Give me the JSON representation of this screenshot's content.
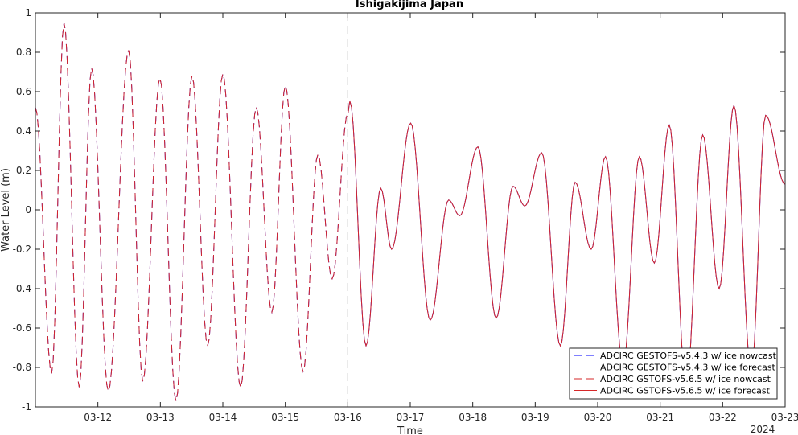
{
  "chart_data": {
    "type": "line",
    "title": "Ishigakijima Japan",
    "xlabel": "Time",
    "ylabel": "Water Level (m)",
    "year_label": "2024",
    "ylim": [
      -1,
      1
    ],
    "yticks": [
      -1,
      -0.8,
      -0.6,
      -0.4,
      -0.2,
      0,
      0.2,
      0.4,
      0.6,
      0.8,
      1
    ],
    "ytick_labels": [
      "-1",
      "-0.8",
      "-0.6",
      "-0.4",
      "-0.2",
      "0",
      "0.2",
      "0.4",
      "0.6",
      "0.8",
      "1"
    ],
    "x_start": "03-11 00:00",
    "x_end": "03-23 00:00",
    "xtick_labels": [
      "03-12",
      "03-13",
      "03-14",
      "03-15",
      "03-16",
      "03-17",
      "03-18",
      "03-19",
      "03-20",
      "03-21",
      "03-22",
      "03-23"
    ],
    "nowcast_end": "03-16",
    "legend_position": "bottom-right",
    "colors": {
      "gestofs": "#0000ff",
      "gstofs": "#d62728",
      "divider": "#808080"
    },
    "series": [
      {
        "name": "ADCIRC GESTOFS-v5.4.3 w/ ice nowcast",
        "color": "#0000ff",
        "style": "dashed",
        "points": [
          [
            "03-11 00:00",
            0.52
          ],
          [
            "03-11 06:15",
            -0.83
          ],
          [
            "03-11 11:00",
            0.95
          ],
          [
            "03-11 16:50",
            -0.9
          ],
          [
            "03-11 21:35",
            0.72
          ],
          [
            "03-12 04:00",
            -0.92
          ],
          [
            "03-12 11:50",
            0.81
          ],
          [
            "03-12 17:15",
            -0.87
          ],
          [
            "03-12 23:50",
            0.67
          ],
          [
            "03-13 06:00",
            -0.97
          ],
          [
            "03-13 12:10",
            0.68
          ],
          [
            "03-13 18:10",
            -0.69
          ],
          [
            "03-14 00:00",
            0.69
          ],
          [
            "03-14 06:50",
            -0.9
          ],
          [
            "03-14 12:50",
            0.52
          ],
          [
            "03-14 18:50",
            -0.52
          ],
          [
            "03-15 00:00",
            0.63
          ],
          [
            "03-15 06:50",
            -0.82
          ],
          [
            "03-15 12:30",
            0.28
          ],
          [
            "03-15 18:00",
            -0.35
          ],
          [
            "03-16 00:00",
            0.49
          ]
        ]
      },
      {
        "name": "ADCIRC GESTOFS-v5.4.3 w/ ice forecast",
        "color": "#0000ff",
        "style": "solid",
        "points": [
          [
            "03-16 00:00",
            0.49
          ],
          [
            "03-16 00:50",
            0.55
          ],
          [
            "03-16 07:00",
            -0.69
          ],
          [
            "03-16 12:40",
            0.11
          ],
          [
            "03-16 16:50",
            -0.2
          ],
          [
            "03-17 00:10",
            0.44
          ],
          [
            "03-17 07:40",
            -0.56
          ],
          [
            "03-17 14:45",
            0.05
          ],
          [
            "03-17 19:00",
            -0.03
          ],
          [
            "03-18 02:00",
            0.32
          ],
          [
            "03-18 09:00",
            -0.55
          ],
          [
            "03-18 15:30",
            0.12
          ],
          [
            "03-18 20:00",
            0.02
          ],
          [
            "03-19 02:30",
            0.29
          ],
          [
            "03-19 09:40",
            -0.69
          ],
          [
            "03-19 15:20",
            0.14
          ],
          [
            "03-19 21:30",
            -0.2
          ],
          [
            "03-20 03:00",
            0.27
          ],
          [
            "03-20 09:45",
            -0.79
          ],
          [
            "03-20 16:00",
            0.27
          ],
          [
            "03-20 21:45",
            -0.27
          ],
          [
            "03-21 03:30",
            0.43
          ],
          [
            "03-21 10:00",
            -0.9
          ],
          [
            "03-21 16:20",
            0.38
          ],
          [
            "03-21 22:40",
            -0.4
          ],
          [
            "03-22 04:20",
            0.53
          ],
          [
            "03-22 11:00",
            -0.82
          ],
          [
            "03-22 16:30",
            0.48
          ],
          [
            "03-23 00:00",
            0.13
          ]
        ]
      },
      {
        "name": "ADCIRC GSTOFS-v5.6.5 w/ ice nowcast",
        "color": "#d62728",
        "style": "dashed",
        "points": [
          [
            "03-11 00:00",
            0.52
          ],
          [
            "03-11 06:15",
            -0.83
          ],
          [
            "03-11 11:00",
            0.95
          ],
          [
            "03-11 16:50",
            -0.9
          ],
          [
            "03-11 21:35",
            0.72
          ],
          [
            "03-12 04:00",
            -0.92
          ],
          [
            "03-12 11:50",
            0.81
          ],
          [
            "03-12 17:15",
            -0.87
          ],
          [
            "03-12 23:50",
            0.67
          ],
          [
            "03-13 06:00",
            -0.97
          ],
          [
            "03-13 12:10",
            0.68
          ],
          [
            "03-13 18:10",
            -0.69
          ],
          [
            "03-14 00:00",
            0.69
          ],
          [
            "03-14 06:50",
            -0.9
          ],
          [
            "03-14 12:50",
            0.52
          ],
          [
            "03-14 18:50",
            -0.52
          ],
          [
            "03-15 00:00",
            0.63
          ],
          [
            "03-15 06:50",
            -0.82
          ],
          [
            "03-15 12:30",
            0.28
          ],
          [
            "03-15 18:00",
            -0.35
          ],
          [
            "03-16 00:00",
            0.49
          ]
        ]
      },
      {
        "name": "ADCIRC GSTOFS-v5.6.5 w/ ice forecast",
        "color": "#d62728",
        "style": "solid",
        "points": [
          [
            "03-16 00:00",
            0.49
          ],
          [
            "03-16 00:50",
            0.55
          ],
          [
            "03-16 07:00",
            -0.69
          ],
          [
            "03-16 12:40",
            0.11
          ],
          [
            "03-16 16:50",
            -0.2
          ],
          [
            "03-17 00:10",
            0.44
          ],
          [
            "03-17 07:40",
            -0.56
          ],
          [
            "03-17 14:45",
            0.05
          ],
          [
            "03-17 19:00",
            -0.03
          ],
          [
            "03-18 02:00",
            0.32
          ],
          [
            "03-18 09:00",
            -0.55
          ],
          [
            "03-18 15:30",
            0.12
          ],
          [
            "03-18 20:00",
            0.02
          ],
          [
            "03-19 02:30",
            0.29
          ],
          [
            "03-19 09:40",
            -0.69
          ],
          [
            "03-19 15:20",
            0.14
          ],
          [
            "03-19 21:30",
            -0.2
          ],
          [
            "03-20 03:00",
            0.27
          ],
          [
            "03-20 09:45",
            -0.79
          ],
          [
            "03-20 16:00",
            0.27
          ],
          [
            "03-20 21:45",
            -0.27
          ],
          [
            "03-21 03:30",
            0.43
          ],
          [
            "03-21 10:00",
            -0.9
          ],
          [
            "03-21 16:20",
            0.38
          ],
          [
            "03-21 22:40",
            -0.4
          ],
          [
            "03-22 04:20",
            0.53
          ],
          [
            "03-22 11:00",
            -0.82
          ],
          [
            "03-22 16:30",
            0.48
          ],
          [
            "03-23 00:00",
            0.13
          ]
        ]
      }
    ]
  }
}
